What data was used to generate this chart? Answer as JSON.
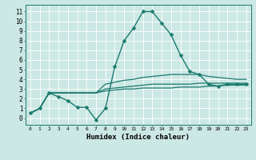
{
  "title": "",
  "xlabel": "Humidex (Indice chaleur)",
  "background_color": "#cce8e4",
  "line_color": "#1a7a6e",
  "grid_color": "#ffffff",
  "x_ticks": [
    0,
    1,
    2,
    3,
    4,
    5,
    6,
    7,
    8,
    9,
    10,
    11,
    12,
    13,
    14,
    15,
    16,
    17,
    18,
    19,
    20,
    21,
    22,
    23
  ],
  "y_ticks": [
    0,
    1,
    2,
    3,
    4,
    5,
    6,
    7,
    8,
    9,
    10,
    11
  ],
  "ylim": [
    -0.7,
    11.7
  ],
  "xlim": [
    -0.5,
    23.5
  ],
  "lines": [
    {
      "x": [
        0,
        1,
        2,
        3,
        4,
        5,
        6,
        7,
        8,
        9,
        10,
        11,
        12,
        13,
        14,
        15,
        16,
        17,
        18,
        19,
        20,
        21,
        22,
        23
      ],
      "y": [
        0.5,
        1.0,
        2.6,
        2.2,
        1.8,
        1.1,
        1.1,
        -0.2,
        1.0,
        5.3,
        8.0,
        9.3,
        11.0,
        11.0,
        9.8,
        8.6,
        6.5,
        4.8,
        4.5,
        3.5,
        3.3,
        3.5,
        3.5,
        3.5
      ],
      "has_marker": true,
      "markersize": 2.5,
      "linewidth": 1.0
    },
    {
      "x": [
        0,
        1,
        2,
        3,
        4,
        5,
        6,
        7,
        8,
        9,
        10,
        11,
        12,
        13,
        14,
        15,
        16,
        17,
        18,
        19,
        20,
        21,
        22,
        23
      ],
      "y": [
        0.5,
        1.0,
        2.6,
        2.6,
        2.6,
        2.6,
        2.6,
        2.6,
        2.8,
        2.9,
        3.0,
        3.0,
        3.1,
        3.1,
        3.1,
        3.1,
        3.2,
        3.2,
        3.2,
        3.3,
        3.3,
        3.4,
        3.4,
        3.4
      ],
      "has_marker": false,
      "linewidth": 0.9
    },
    {
      "x": [
        0,
        1,
        2,
        3,
        4,
        5,
        6,
        7,
        8,
        9,
        10,
        11,
        12,
        13,
        14,
        15,
        16,
        17,
        18,
        19,
        20,
        21,
        22,
        23
      ],
      "y": [
        0.5,
        1.0,
        2.6,
        2.6,
        2.6,
        2.6,
        2.6,
        2.6,
        3.0,
        3.1,
        3.2,
        3.3,
        3.4,
        3.5,
        3.5,
        3.5,
        3.5,
        3.5,
        3.6,
        3.6,
        3.6,
        3.6,
        3.6,
        3.6
      ],
      "has_marker": false,
      "linewidth": 0.9
    },
    {
      "x": [
        0,
        1,
        2,
        3,
        4,
        5,
        6,
        7,
        8,
        9,
        10,
        11,
        12,
        13,
        14,
        15,
        16,
        17,
        18,
        19,
        20,
        21,
        22,
        23
      ],
      "y": [
        0.5,
        1.0,
        2.6,
        2.6,
        2.6,
        2.6,
        2.6,
        2.6,
        3.5,
        3.7,
        3.9,
        4.0,
        4.2,
        4.3,
        4.4,
        4.5,
        4.5,
        4.5,
        4.5,
        4.3,
        4.2,
        4.1,
        4.0,
        4.0
      ],
      "has_marker": false,
      "linewidth": 0.9
    }
  ]
}
